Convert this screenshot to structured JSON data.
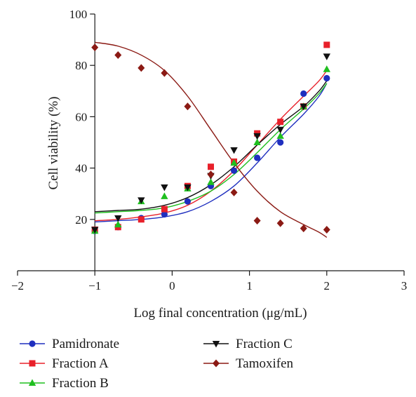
{
  "chart_data": {
    "type": "scatter",
    "xlabel": "Log final concentration (μg/mL)",
    "ylabel": "Cell viability (%)",
    "xlim": [
      -2,
      3
    ],
    "ylim": [
      0,
      100
    ],
    "x_ticks": [
      "−2",
      "−1",
      "0",
      "1",
      "2",
      "3"
    ],
    "y_ticks": [
      "20",
      "40",
      "60",
      "80",
      "100"
    ],
    "grid": false,
    "legend_position": "bottom",
    "fit": "sigmoidal curve per series",
    "series": [
      {
        "name": "Pamidronate",
        "color": "#1f2fbf",
        "marker": "circle",
        "x": [
          -1,
          -0.7,
          -0.4,
          -0.1,
          0.2,
          0.5,
          0.8,
          1.1,
          1.4,
          1.7,
          2.0
        ],
        "y": [
          15.5,
          17,
          20.5,
          22,
          27,
          33,
          39,
          44,
          50,
          69,
          75
        ],
        "fit_y": [
          19,
          19.5,
          20,
          21,
          23,
          27,
          33,
          42,
          52,
          61,
          68,
          73
        ]
      },
      {
        "name": "Fraction A",
        "color": "#e8202a",
        "marker": "square",
        "x": [
          -1,
          -0.7,
          -0.4,
          -0.1,
          0.2,
          0.5,
          0.8,
          1.1,
          1.4,
          1.7,
          2.0
        ],
        "y": [
          16,
          17,
          20,
          24,
          33,
          40.5,
          42.5,
          53.5,
          58,
          64,
          88
        ],
        "fit_y": [
          19.5,
          20,
          21,
          22.5,
          25.5,
          31,
          39,
          49,
          59,
          68,
          74,
          78
        ]
      },
      {
        "name": "Fraction B",
        "color": "#1fbf1f",
        "marker": "triangle-up",
        "x": [
          -1,
          -0.7,
          -0.4,
          -0.1,
          0.2,
          0.5,
          0.8,
          1.1,
          1.4,
          1.7,
          2.0
        ],
        "y": [
          15.5,
          18,
          27,
          29,
          32,
          34.5,
          42,
          50,
          52.5,
          64,
          78.5
        ],
        "fit_y": [
          22.5,
          23,
          23.5,
          24.5,
          27,
          31,
          37.5,
          46,
          55,
          63,
          69,
          73
        ]
      },
      {
        "name": "Fraction C",
        "color": "#111111",
        "marker": "triangle-down",
        "x": [
          -1,
          -0.7,
          -0.4,
          -0.1,
          0.2,
          0.5,
          0.8,
          1.1,
          1.4,
          1.7,
          2.0
        ],
        "y": [
          16,
          20.5,
          27.5,
          32.5,
          32.5,
          37,
          47,
          52.5,
          55,
          64,
          83.5
        ],
        "fit_y": [
          23,
          23.5,
          24,
          25.5,
          28.5,
          33.5,
          40.5,
          49,
          57,
          64,
          70,
          74
        ]
      },
      {
        "name": "Tamoxifen",
        "color": "#8b1a14",
        "marker": "diamond",
        "x": [
          -1,
          -0.7,
          -0.4,
          -0.1,
          0.2,
          0.5,
          0.8,
          1.1,
          1.4,
          1.7,
          2.0
        ],
        "y": [
          87,
          84,
          79,
          77,
          64,
          37.5,
          30.5,
          19.5,
          18.5,
          16.5,
          16
        ],
        "fit_y": [
          89,
          87.5,
          84,
          78,
          68,
          55,
          42,
          31,
          23,
          18,
          15,
          13
        ]
      }
    ],
    "fit_x": [
      -1,
      -0.7,
      -0.4,
      -0.1,
      0.2,
      0.5,
      0.8,
      1.1,
      1.4,
      1.7,
      1.9,
      2.0
    ]
  }
}
